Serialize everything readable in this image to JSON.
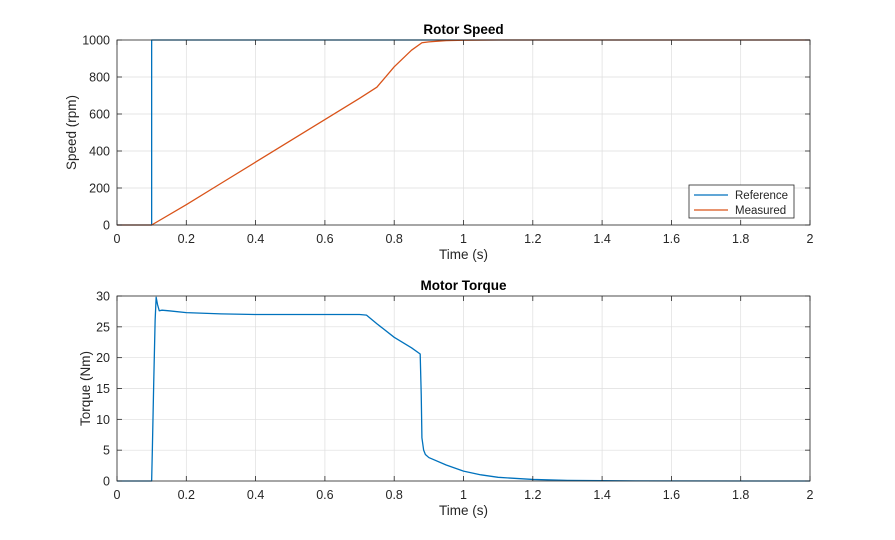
{
  "chart_data": [
    {
      "type": "line",
      "title": "Rotor Speed",
      "xlabel": "Time (s)",
      "ylabel": "Speed (rpm)",
      "xlim": [
        0,
        2
      ],
      "ylim": [
        0,
        1000
      ],
      "xticks": [
        0,
        0.2,
        0.4,
        0.6,
        0.8,
        1,
        1.2,
        1.4,
        1.6,
        1.8,
        2
      ],
      "xtick_labels": [
        "0",
        "0.2",
        "0.4",
        "0.6",
        "0.8",
        "1",
        "1.2",
        "1.4",
        "1.6",
        "1.8",
        "2"
      ],
      "yticks": [
        0,
        200,
        400,
        600,
        800,
        1000
      ],
      "ytick_labels": [
        "0",
        "200",
        "400",
        "600",
        "800",
        "1000"
      ],
      "grid": true,
      "legend": "bottom-right",
      "series": [
        {
          "name": "Reference",
          "color": "#0072BD",
          "x": [
            0,
            0.1,
            0.1,
            2
          ],
          "y": [
            0,
            0,
            1000,
            1000
          ]
        },
        {
          "name": "Measured",
          "color": "#D95319",
          "x": [
            0,
            0.1,
            0.2,
            0.3,
            0.4,
            0.5,
            0.6,
            0.7,
            0.75,
            0.8,
            0.85,
            0.88,
            0.9,
            0.95,
            1.0,
            1.1,
            1.2,
            1.5,
            2.0
          ],
          "y": [
            0,
            0,
            110,
            225,
            340,
            455,
            570,
            685,
            745,
            855,
            945,
            985,
            990,
            997,
            999,
            1000,
            1000,
            1000,
            1000
          ]
        }
      ]
    },
    {
      "type": "line",
      "title": "Motor Torque",
      "xlabel": "Time (s)",
      "ylabel": "Torque (Nm)",
      "xlim": [
        0,
        2
      ],
      "ylim": [
        0,
        30
      ],
      "xticks": [
        0,
        0.2,
        0.4,
        0.6,
        0.8,
        1,
        1.2,
        1.4,
        1.6,
        1.8,
        2
      ],
      "xtick_labels": [
        "0",
        "0.2",
        "0.4",
        "0.6",
        "0.8",
        "1",
        "1.2",
        "1.4",
        "1.6",
        "1.8",
        "2"
      ],
      "yticks": [
        0,
        5,
        10,
        15,
        20,
        25,
        30
      ],
      "ytick_labels": [
        "0",
        "5",
        "10",
        "15",
        "20",
        "25",
        "30"
      ],
      "grid": true,
      "series": [
        {
          "color": "#0072BD",
          "x": [
            0,
            0.1,
            0.102,
            0.106,
            0.11,
            0.113,
            0.117,
            0.122,
            0.13,
            0.15,
            0.2,
            0.3,
            0.4,
            0.5,
            0.6,
            0.7,
            0.72,
            0.75,
            0.8,
            0.85,
            0.875,
            0.878,
            0.88,
            0.885,
            0.89,
            0.9,
            0.95,
            1.0,
            1.05,
            1.1,
            1.2,
            1.3,
            1.5,
            2.0
          ],
          "y": [
            0,
            0,
            5,
            16,
            26,
            29.8,
            28.6,
            27.6,
            27.7,
            27.6,
            27.3,
            27.1,
            27.0,
            27.0,
            27.0,
            27.0,
            26.9,
            25.5,
            23.3,
            21.6,
            20.6,
            14,
            7,
            5,
            4.3,
            3.8,
            2.6,
            1.6,
            1.0,
            0.6,
            0.25,
            0.1,
            0.02,
            0
          ]
        }
      ]
    }
  ]
}
